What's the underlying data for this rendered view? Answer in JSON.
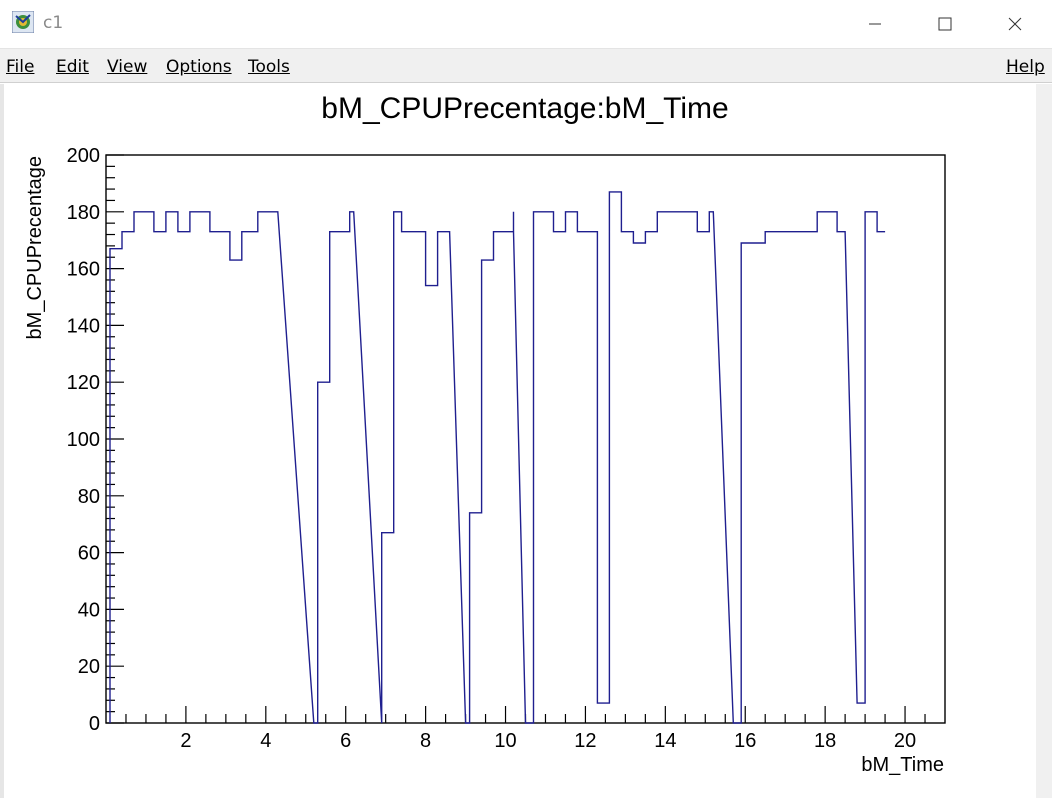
{
  "window": {
    "title": "c1",
    "icon": "root-canvas-icon",
    "controls": [
      "minimize-icon",
      "maximize-icon",
      "close-icon"
    ]
  },
  "menu": {
    "file": "File",
    "edit": "Edit",
    "view": "View",
    "options": "Options",
    "tools": "Tools",
    "help": "Help"
  },
  "colors": {
    "line": "#1f1f8f",
    "axis": "#000000",
    "background": "#ffffff"
  },
  "chart_data": {
    "type": "line",
    "title": "bM_CPUPrecentage:bM_Time",
    "xlabel": "bM_Time",
    "ylabel": "bM_CPUPrecentage",
    "xlim": [
      0,
      21
    ],
    "ylim": [
      0,
      200
    ],
    "x_ticks": [
      2,
      4,
      6,
      8,
      10,
      12,
      14,
      16,
      18,
      20
    ],
    "y_ticks": [
      0,
      20,
      40,
      60,
      80,
      100,
      120,
      140,
      160,
      180,
      200
    ],
    "grid": false,
    "legend": "none",
    "step": true,
    "points": [
      [
        0.1,
        0
      ],
      [
        0.1,
        167
      ],
      [
        0.4,
        167
      ],
      [
        0.4,
        173
      ],
      [
        0.7,
        173
      ],
      [
        0.7,
        180
      ],
      [
        1.2,
        180
      ],
      [
        1.2,
        173
      ],
      [
        1.5,
        173
      ],
      [
        1.5,
        180
      ],
      [
        1.8,
        180
      ],
      [
        1.8,
        173
      ],
      [
        2.1,
        173
      ],
      [
        2.1,
        180
      ],
      [
        2.6,
        180
      ],
      [
        2.6,
        173
      ],
      [
        3.1,
        173
      ],
      [
        3.1,
        163
      ],
      [
        3.4,
        163
      ],
      [
        3.4,
        173
      ],
      [
        3.8,
        173
      ],
      [
        3.8,
        180
      ],
      [
        4.3,
        180
      ],
      [
        5.2,
        0
      ],
      [
        5.3,
        0
      ],
      [
        5.3,
        120
      ],
      [
        5.6,
        120
      ],
      [
        5.6,
        173
      ],
      [
        6.1,
        173
      ],
      [
        6.1,
        180
      ],
      [
        6.2,
        180
      ],
      [
        6.9,
        0
      ],
      [
        6.9,
        67
      ],
      [
        7.2,
        67
      ],
      [
        7.2,
        180
      ],
      [
        7.4,
        180
      ],
      [
        7.4,
        173
      ],
      [
        8.0,
        173
      ],
      [
        8.0,
        154
      ],
      [
        8.3,
        154
      ],
      [
        8.3,
        173
      ],
      [
        8.6,
        173
      ],
      [
        9.0,
        0
      ],
      [
        9.1,
        0
      ],
      [
        9.1,
        74
      ],
      [
        9.4,
        74
      ],
      [
        9.4,
        163
      ],
      [
        9.7,
        163
      ],
      [
        9.7,
        173
      ],
      [
        10.2,
        173
      ],
      [
        10.2,
        180
      ],
      [
        10.2,
        173
      ],
      [
        10.5,
        0
      ],
      [
        10.7,
        0
      ],
      [
        10.7,
        180
      ],
      [
        11.2,
        180
      ],
      [
        11.2,
        173
      ],
      [
        11.5,
        173
      ],
      [
        11.5,
        180
      ],
      [
        11.8,
        180
      ],
      [
        11.8,
        173
      ],
      [
        12.3,
        173
      ],
      [
        12.3,
        7
      ],
      [
        12.6,
        7
      ],
      [
        12.6,
        187
      ],
      [
        12.9,
        187
      ],
      [
        12.9,
        173
      ],
      [
        13.2,
        173
      ],
      [
        13.2,
        169
      ],
      [
        13.5,
        169
      ],
      [
        13.5,
        173
      ],
      [
        13.8,
        173
      ],
      [
        13.8,
        180
      ],
      [
        14.8,
        180
      ],
      [
        14.8,
        173
      ],
      [
        15.1,
        173
      ],
      [
        15.1,
        180
      ],
      [
        15.2,
        180
      ],
      [
        15.7,
        0
      ],
      [
        15.9,
        0
      ],
      [
        15.9,
        169
      ],
      [
        16.5,
        169
      ],
      [
        16.5,
        173
      ],
      [
        17.8,
        173
      ],
      [
        17.8,
        180
      ],
      [
        18.3,
        180
      ],
      [
        18.3,
        173
      ],
      [
        18.5,
        173
      ],
      [
        18.8,
        7
      ],
      [
        19.0,
        7
      ],
      [
        19.0,
        180
      ],
      [
        19.3,
        180
      ],
      [
        19.3,
        173
      ],
      [
        19.5,
        173
      ]
    ]
  }
}
